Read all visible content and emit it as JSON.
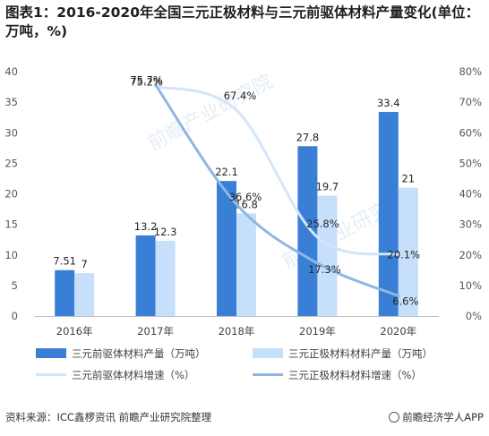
{
  "title": "图表1：2016-2020年全国三元正极材料与三元前驱体材料产量变化(单位：万吨，%)",
  "footer": {
    "source": "资料来源：ICC鑫椤资讯 前瞻产业研究院整理",
    "brand": "前瞻经济学人APP"
  },
  "watermark": "前瞻产业研究院",
  "colors": {
    "bar_precursor": "#3a7fd6",
    "bar_cathode": "#c6dffa",
    "line_precursor": "#d2e6f8",
    "line_cathode": "#8db7e3"
  },
  "chart_data": {
    "type": "bar",
    "categories": [
      "2016年",
      "2017年",
      "2018年",
      "2019年",
      "2020年"
    ],
    "ylim": [
      0,
      40
    ],
    "y_ticks": [
      "0",
      "5",
      "10",
      "15",
      "20",
      "25",
      "30",
      "35",
      "40"
    ],
    "y2lim": [
      0,
      80
    ],
    "y2_ticks": [
      "0%",
      "10%",
      "20%",
      "30%",
      "40%",
      "50%",
      "60%",
      "70%",
      "80%"
    ],
    "grid": false,
    "legend_position": "bottom",
    "series": [
      {
        "name": "三元前驱体材料产量（万吨）",
        "kind": "bar",
        "axis": "left",
        "values": [
          7.51,
          13.2,
          22.1,
          27.8,
          33.4
        ],
        "labels": [
          "7.51",
          "13.2",
          "22.1",
          "27.8",
          "33.4"
        ]
      },
      {
        "name": "三元正极材料材料产量（万吨）",
        "kind": "bar",
        "axis": "left",
        "values": [
          7,
          12.3,
          16.8,
          19.7,
          21
        ],
        "labels": [
          "7",
          "12.3",
          "16.8",
          "19.7",
          "21"
        ]
      },
      {
        "name": "三元前驱体材料增速（%）",
        "kind": "line",
        "axis": "right",
        "x": [
          "2017年",
          "2018年",
          "2019年",
          "2020年"
        ],
        "values": [
          75.2,
          67.4,
          25.8,
          20.1
        ],
        "labels": [
          "75.2%",
          "67.4%",
          "25.8%",
          "20.1%"
        ]
      },
      {
        "name": "三元正极材料材料增速（%）",
        "kind": "line",
        "axis": "right",
        "x": [
          "2017年",
          "2018年",
          "2019年",
          "2020年"
        ],
        "values": [
          75.7,
          36.6,
          17.3,
          6.6
        ],
        "labels": [
          "75.7%",
          "36.6%",
          "17.3%",
          "6.6%"
        ]
      }
    ]
  }
}
